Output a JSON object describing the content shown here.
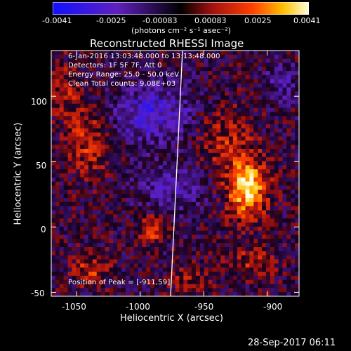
{
  "colorbar": {
    "tick_labels": [
      "-0.0041",
      "-0.0025",
      "-0.00083",
      "0.00083",
      "0.0025",
      "0.0041"
    ],
    "units": "(photons cm⁻² s⁻¹ asec⁻²)"
  },
  "title": "Reconstructed RHESSI Image",
  "info_lines": [
    "6-Jan-2016 13:03:48.000 to 13:13:48.000",
    "Detectors: 1F 5F 7F, Att 0",
    "Energy Range: 25.0 - 50.0 keV",
    "Clean     Total counts: 9.08E+03"
  ],
  "peak_text": "Position of Peak = [-911,59]",
  "xaxis": {
    "label": "Heliocentric X (arcsec)",
    "ticks": [
      -1050,
      -1000,
      -950,
      -900
    ],
    "range": [
      -1070,
      -875
    ]
  },
  "yaxis": {
    "label": "Heliocentric Y (arcsec)",
    "ticks": [
      -50,
      0,
      50,
      100
    ],
    "range": [
      -53,
      135
    ]
  },
  "timestamp": "28-Sep-2017 06:11",
  "colors": {
    "background": "#000000",
    "limb": "#ffffff",
    "text": "#ffffff"
  }
}
